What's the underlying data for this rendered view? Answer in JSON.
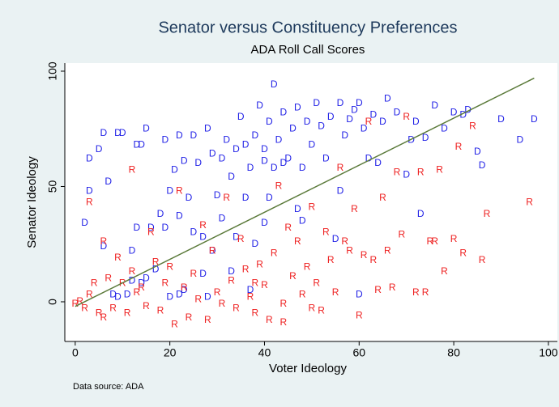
{
  "chart_data": {
    "type": "scatter",
    "title": "Senator versus Constituency Preferences",
    "subtitle": "ADA Roll Call Scores",
    "xlabel": "Voter Ideology",
    "ylabel": "Senator Ideology",
    "note": "Data source:  ADA",
    "xlim": [
      -2.2,
      101.9
    ],
    "ylim": [
      -17.2,
      103.5
    ],
    "xticks": [
      0,
      20,
      40,
      60,
      80,
      100
    ],
    "yticks": [
      0,
      50,
      100
    ],
    "grid": false,
    "series": [
      {
        "name": "D",
        "color": "#1f1fe6",
        "x": [
          2,
          3,
          3,
          5,
          6,
          6,
          7,
          8,
          9,
          9,
          10,
          11,
          12,
          13,
          13,
          14,
          15,
          15,
          16,
          17,
          18,
          19,
          19,
          20,
          20,
          21,
          22,
          22,
          23,
          23,
          24,
          25,
          25,
          26,
          27,
          27,
          28,
          29,
          29,
          30,
          31,
          31,
          32,
          33,
          33,
          34,
          34,
          35,
          36,
          36,
          37,
          38,
          38,
          39,
          40,
          40,
          41,
          41,
          42,
          42,
          43,
          44,
          45,
          46,
          47,
          47,
          48,
          49,
          50,
          51,
          52,
          53,
          54,
          55,
          56,
          57,
          58,
          59,
          60,
          61,
          62,
          63,
          64,
          65,
          66,
          68,
          70,
          71,
          72,
          73,
          74,
          76,
          78,
          80,
          82,
          83,
          85,
          86,
          90,
          94,
          97,
          40,
          44,
          48,
          56,
          60,
          28,
          22,
          37,
          12,
          14
        ],
        "values": [
          34,
          48,
          62,
          66,
          73,
          24,
          52,
          3,
          2,
          73,
          73,
          3,
          22,
          32,
          68,
          68,
          10,
          75,
          32,
          14,
          38,
          32,
          70,
          2,
          48,
          57,
          37,
          72,
          61,
          5,
          45,
          30,
          72,
          60,
          12,
          28,
          75,
          64,
          22,
          46,
          36,
          62,
          70,
          54,
          13,
          66,
          28,
          80,
          68,
          45,
          58,
          72,
          25,
          85,
          66,
          34,
          45,
          78,
          58,
          94,
          70,
          82,
          62,
          75,
          40,
          84,
          58,
          78,
          68,
          86,
          76,
          62,
          80,
          27,
          86,
          72,
          79,
          83,
          86,
          75,
          62,
          81,
          60,
          78,
          88,
          82,
          55,
          70,
          78,
          38,
          71,
          85,
          75,
          82,
          81,
          83,
          65,
          59,
          79,
          70,
          79,
          61,
          60,
          35,
          48,
          3,
          2,
          3,
          5,
          9,
          8
        ]
      },
      {
        "name": "R",
        "color": "#ee2020",
        "x": [
          0,
          1,
          2,
          3,
          3,
          4,
          5,
          6,
          6,
          7,
          8,
          9,
          10,
          11,
          12,
          12,
          13,
          14,
          15,
          16,
          17,
          18,
          19,
          20,
          21,
          22,
          23,
          24,
          25,
          26,
          27,
          28,
          29,
          30,
          31,
          32,
          33,
          34,
          35,
          36,
          37,
          38,
          39,
          40,
          41,
          42,
          43,
          44,
          45,
          46,
          47,
          48,
          49,
          50,
          51,
          52,
          53,
          54,
          55,
          56,
          57,
          58,
          59,
          60,
          61,
          62,
          63,
          64,
          65,
          66,
          67,
          68,
          69,
          70,
          72,
          73,
          74,
          75,
          76,
          77,
          78,
          80,
          81,
          82,
          84,
          86,
          87,
          96,
          44,
          50,
          38
        ],
        "values": [
          -1,
          0,
          -3,
          3,
          43,
          8,
          -5,
          26,
          -7,
          10,
          -3,
          19,
          8,
          -5,
          57,
          13,
          4,
          6,
          -2,
          30,
          17,
          -4,
          8,
          15,
          -10,
          48,
          6,
          -7,
          12,
          1,
          33,
          -8,
          22,
          4,
          -1,
          45,
          9,
          -3,
          27,
          14,
          2,
          -5,
          16,
          7,
          -8,
          21,
          50,
          -1,
          32,
          11,
          26,
          3,
          15,
          41,
          8,
          -4,
          30,
          18,
          4,
          58,
          26,
          22,
          40,
          -6,
          20,
          78,
          18,
          5,
          45,
          22,
          6,
          56,
          29,
          80,
          4,
          56,
          4,
          26,
          26,
          57,
          13,
          27,
          67,
          21,
          76,
          18,
          38,
          43,
          -9,
          -3,
          8
        ]
      },
      {
        "name": "Fitted values",
        "type": "line",
        "color": "#5b7a3a",
        "x": [
          0,
          97
        ],
        "values": [
          -2,
          97
        ]
      }
    ]
  }
}
